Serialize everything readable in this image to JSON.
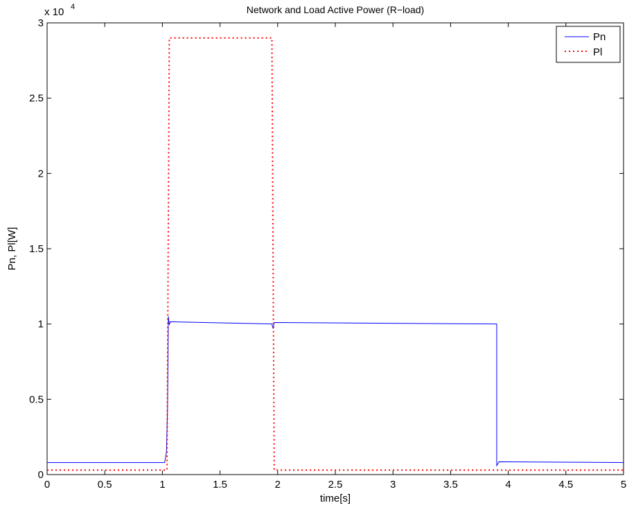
{
  "chart_data": {
    "type": "line",
    "title": "Network and Load Active Power (R−load)",
    "xlabel": "time[s]",
    "ylabel": "Pn, Pl[W]",
    "xlim": [
      0,
      5
    ],
    "ylim": [
      0,
      30000
    ],
    "y_multiplier_label": "x 10",
    "y_multiplier_exponent": "4",
    "x_tick_labels": [
      "0",
      "0.5",
      "1",
      "1.5",
      "2",
      "2.5",
      "3",
      "3.5",
      "4",
      "4.5",
      "5"
    ],
    "y_tick_labels": [
      "0",
      "0.5",
      "1",
      "1.5",
      "2",
      "2.5",
      "3"
    ],
    "grid": false,
    "legend_position": "top-right",
    "series": [
      {
        "name": "Pn",
        "color": "#0000ff",
        "style": "solid",
        "points": [
          [
            0,
            800
          ],
          [
            1.02,
            800
          ],
          [
            1.035,
            1500
          ],
          [
            1.045,
            4500
          ],
          [
            1.052,
            10500
          ],
          [
            1.06,
            9950
          ],
          [
            1.07,
            10150
          ],
          [
            1.95,
            10000
          ],
          [
            1.96,
            9700
          ],
          [
            1.97,
            10100
          ],
          [
            3.9,
            10000
          ],
          [
            3.9,
            600
          ],
          [
            3.92,
            850
          ],
          [
            5,
            800
          ]
        ]
      },
      {
        "name": "Pl",
        "color": "#ff0000",
        "style": "dotted",
        "points": [
          [
            0,
            300
          ],
          [
            1.04,
            300
          ],
          [
            1.06,
            29000
          ],
          [
            1.95,
            29000
          ],
          [
            1.97,
            300
          ],
          [
            5,
            300
          ]
        ]
      }
    ]
  }
}
